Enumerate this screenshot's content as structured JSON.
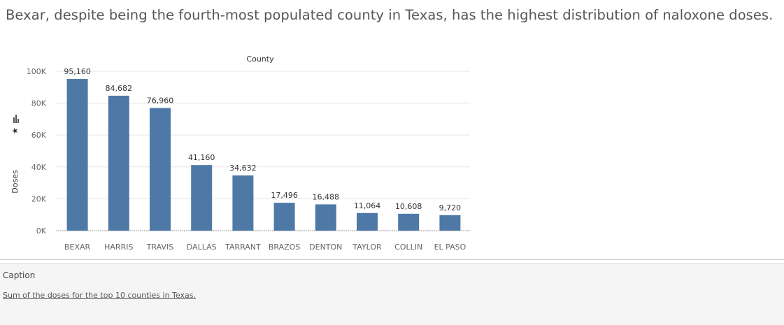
{
  "title": "Bexar, despite being the fourth-most populated county in Texas, has the highest distribution of naloxone doses.",
  "caption": {
    "label": "Caption",
    "text": "Sum of the doses for the top 10 counties in Texas."
  },
  "colors": {
    "bar": "#4e79a7",
    "grid": "#e6e6e6",
    "axis": "#999999"
  },
  "chart_data": {
    "type": "bar",
    "column_header": "County",
    "ylabel": "Doses",
    "ylim": [
      0,
      100000
    ],
    "yticks": [
      0,
      20000,
      40000,
      60000,
      80000,
      100000
    ],
    "ytick_labels": [
      "0K",
      "20K",
      "40K",
      "60K",
      "80K",
      "100K"
    ],
    "categories": [
      "BEXAR",
      "HARRIS",
      "TRAVIS",
      "DALLAS",
      "TARRANT",
      "BRAZOS",
      "DENTON",
      "TAYLOR",
      "COLLIN",
      "EL PASO"
    ],
    "values": [
      95160,
      84682,
      76960,
      41160,
      34632,
      17496,
      16488,
      11064,
      10608,
      9720
    ],
    "value_labels": [
      "95,160",
      "84,682",
      "76,960",
      "41,160",
      "34,632",
      "17,496",
      "16,488",
      "11,064",
      "10,608",
      "9,720"
    ],
    "grid": true
  }
}
